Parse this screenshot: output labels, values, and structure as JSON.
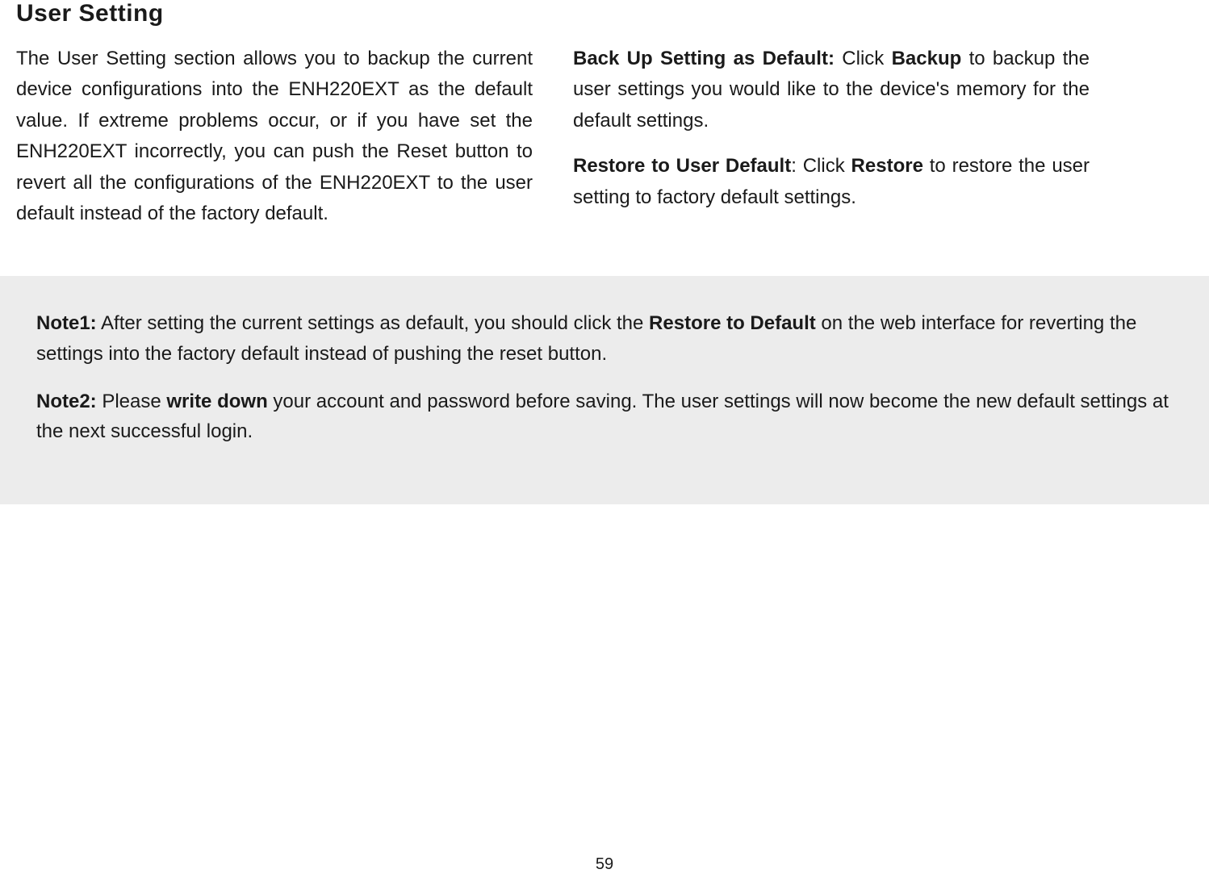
{
  "heading": "User Setting",
  "leftCol": {
    "para1": "The User Setting section allows you to backup the current device configurations into the ENH220EXT as the default value. If extreme problems occur, or if you have set the ENH220EXT incorrectly, you can push the Reset button to revert all the configurations of the ENH220EXT to the user default instead of the factory default."
  },
  "rightCol": {
    "backup": {
      "label": "Back Up Setting as Default:",
      "pre": "  Click ",
      "btn": "Backup",
      "post": " to backup the user settings you would like to the device's memory for the default settings."
    },
    "restore": {
      "label": "Restore to User Default",
      "pre": ": Click ",
      "btn": "Restore",
      "post": " to restore the user setting to factory default settings."
    }
  },
  "notes": {
    "note1": {
      "label": "Note1:",
      "pre": " After setting the current settings as default, you should click the ",
      "bold": "Restore to Default",
      "post": " on the web interface for reverting the settings into the factory default instead of pushing the reset button."
    },
    "note2": {
      "label": "Note2:",
      "pre": " Please ",
      "bold": "write down",
      "post": " your account and password before saving. The user settings will now become the new default settings at the next successful login."
    }
  },
  "pageNumber": "59"
}
